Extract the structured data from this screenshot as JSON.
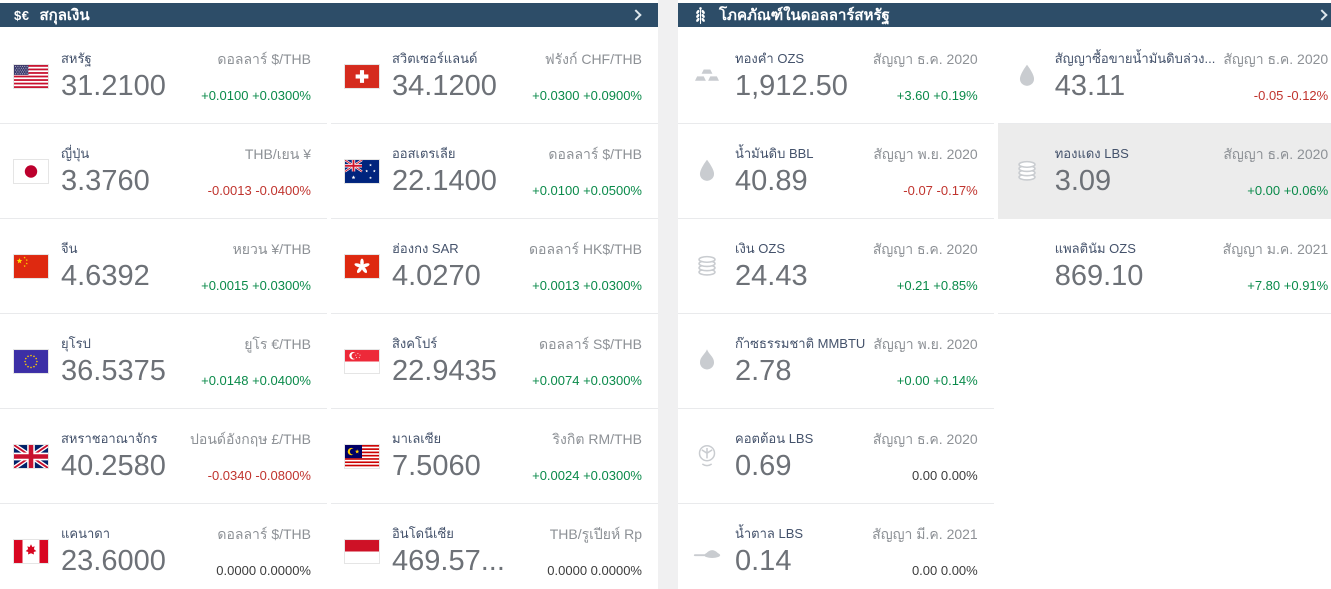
{
  "colors": {
    "header": "#2d4d68",
    "divider": "#f0f0f1",
    "border": "#e9eaec",
    "highlight": "#ececec",
    "name": "#44526b",
    "value": "#6d7177",
    "label": "#8d9196",
    "up": "#0a8a4a",
    "down": "#c0342e",
    "flat": "#3c3c3c"
  },
  "panels": {
    "currencies": {
      "title": "สกุลเงิน",
      "header_icon": "dollar-euro-icon",
      "header_icon_glyph": "$€",
      "chevron_icon": "chevron-right-icon",
      "left_column": [
        {
          "flag": "us",
          "name": "สหรัฐ",
          "value": "31.2100",
          "pair": "ดอลลาร์ $/THB",
          "change": "+0.0100 +0.0300%",
          "direction": "up"
        },
        {
          "flag": "jp",
          "name": "ญี่ปุ่น",
          "value": "3.3760",
          "pair": "THB/เยน ¥",
          "change": "-0.0013 -0.0400%",
          "direction": "down"
        },
        {
          "flag": "cn",
          "name": "จีน",
          "value": "4.6392",
          "pair": "หยวน ¥/THB",
          "change": "+0.0015 +0.0300%",
          "direction": "up"
        },
        {
          "flag": "eu",
          "name": "ยุโรป",
          "value": "36.5375",
          "pair": "ยูโร €/THB",
          "change": "+0.0148 +0.0400%",
          "direction": "up"
        },
        {
          "flag": "gb",
          "name": "สหราชอาณาจักร",
          "value": "40.2580",
          "pair": "ปอนด์อังกฤษ £/THB",
          "change": "-0.0340 -0.0800%",
          "direction": "down"
        },
        {
          "flag": "ca",
          "name": "แคนาดา",
          "value": "23.6000",
          "pair": "ดอลลาร์ $/THB",
          "change": "0.0000 0.0000%",
          "direction": "flat"
        }
      ],
      "right_column": [
        {
          "flag": "ch",
          "name": "สวิตเซอร์แลนด์",
          "value": "34.1200",
          "pair": "ฟรังก์ CHF/THB",
          "change": "+0.0300 +0.0900%",
          "direction": "up"
        },
        {
          "flag": "au",
          "name": "ออสเตรเลีย",
          "value": "22.1400",
          "pair": "ดอลลาร์ $/THB",
          "change": "+0.0100 +0.0500%",
          "direction": "up"
        },
        {
          "flag": "hk",
          "name": "ฮ่องกง SAR",
          "value": "4.0270",
          "pair": "ดอลลาร์ HK$/THB",
          "change": "+0.0013 +0.0300%",
          "direction": "up"
        },
        {
          "flag": "sg",
          "name": "สิงคโปร์",
          "value": "22.9435",
          "pair": "ดอลลาร์ S$/THB",
          "change": "+0.0074 +0.0300%",
          "direction": "up"
        },
        {
          "flag": "my",
          "name": "มาเลเซีย",
          "value": "7.5060",
          "pair": "ริงกิต RM/THB",
          "change": "+0.0024 +0.0300%",
          "direction": "up"
        },
        {
          "flag": "id",
          "name": "อินโดนีเซีย",
          "value": "469.57...",
          "pair": "THB/รูเปียห์ Rp",
          "change": "0.0000 0.0000%",
          "direction": "flat"
        }
      ]
    },
    "commodities": {
      "title": "โภคภัณฑ์ในดอลลาร์สหรัฐ",
      "header_icon": "wheat-icon",
      "chevron_icon": "chevron-right-icon",
      "left_column": [
        {
          "icon": "gold-bars",
          "name": "ทองคำ OZS",
          "value": "1,912.50",
          "contract": "สัญญา ธ.ค. 2020",
          "change": "+3.60 +0.19%",
          "direction": "up"
        },
        {
          "icon": "oil-drop",
          "name": "น้ำมันดิบ BBL",
          "value": "40.89",
          "contract": "สัญญา พ.ย. 2020",
          "change": "-0.07 -0.17%",
          "direction": "down"
        },
        {
          "icon": "coins",
          "name": "เงิน OZS",
          "value": "24.43",
          "contract": "สัญญา ธ.ค. 2020",
          "change": "+0.21 +0.85%",
          "direction": "up"
        },
        {
          "icon": "flame",
          "name": "ก๊าซธรรมชาติ MMBTU",
          "value": "2.78",
          "contract": "สัญญา พ.ย. 2020",
          "change": "+0.00 +0.14%",
          "direction": "up"
        },
        {
          "icon": "cotton",
          "name": "คอตต้อน LBS",
          "value": "0.69",
          "contract": "สัญญา ธ.ค. 2020",
          "change": "0.00 0.00%",
          "direction": "flat"
        },
        {
          "icon": "sugar-spoon",
          "name": "น้ำตาล LBS",
          "value": "0.14",
          "contract": "สัญญา มี.ค. 2021",
          "change": "0.00 0.00%",
          "direction": "flat"
        }
      ],
      "right_column": [
        {
          "icon": "oil-drop",
          "name": "สัญญาซื้อขายน้ำมันดิบล่วง...",
          "value": "43.11",
          "contract": "สัญญา ธ.ค. 2020",
          "change": "-0.05 -0.12%",
          "direction": "down"
        },
        {
          "icon": "copper-coil",
          "name": "ทองแดง LBS",
          "value": "3.09",
          "contract": "สัญญา ธ.ค. 2020",
          "change": "+0.00 +0.06%",
          "direction": "up",
          "highlighted": true
        },
        {
          "icon": "none",
          "name": "แพลตินัม OZS",
          "value": "869.10",
          "contract": "สัญญา ม.ค. 2021",
          "change": "+7.80 +0.91%",
          "direction": "up"
        }
      ]
    }
  }
}
